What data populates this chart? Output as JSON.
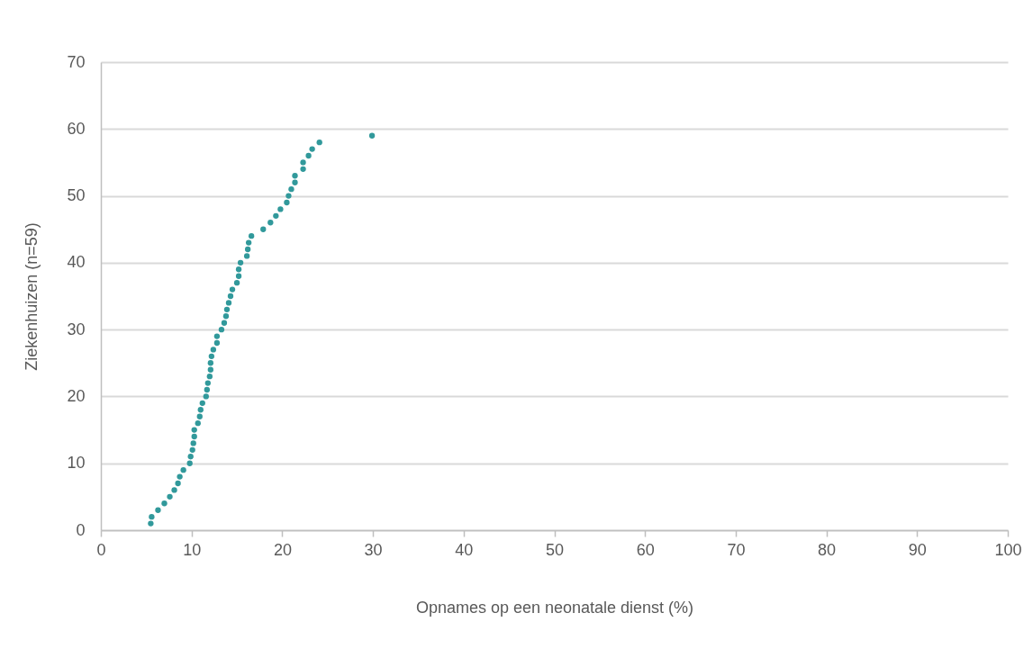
{
  "chart_data": {
    "type": "scatter",
    "xlabel": "Opnames op een neonatale dienst (%)",
    "ylabel": "Ziekenhuizen (n=59)",
    "x": [
      5.5,
      5.6,
      6.3,
      7.0,
      7.6,
      8.1,
      8.5,
      8.7,
      9.1,
      9.8,
      9.9,
      10.1,
      10.2,
      10.3,
      10.3,
      10.7,
      10.9,
      11.0,
      11.2,
      11.6,
      11.7,
      11.8,
      12.0,
      12.1,
      12.1,
      12.2,
      12.4,
      12.8,
      12.8,
      13.3,
      13.6,
      13.8,
      13.9,
      14.1,
      14.3,
      14.5,
      15.0,
      15.2,
      15.2,
      15.4,
      16.1,
      16.2,
      16.3,
      16.6,
      17.9,
      18.7,
      19.3,
      19.8,
      20.5,
      20.7,
      21.0,
      21.4,
      21.4,
      22.3,
      22.3,
      22.9,
      23.3,
      24.1,
      29.9
    ],
    "values": [
      1,
      2,
      3,
      4,
      5,
      6,
      7,
      8,
      9,
      10,
      11,
      12,
      13,
      14,
      15,
      16,
      17,
      18,
      19,
      20,
      21,
      22,
      23,
      24,
      25,
      26,
      27,
      28,
      29,
      30,
      31,
      32,
      33,
      34,
      35,
      36,
      37,
      38,
      39,
      40,
      41,
      42,
      43,
      44,
      45,
      46,
      47,
      48,
      49,
      50,
      51,
      52,
      53,
      54,
      55,
      56,
      57,
      58,
      59
    ],
    "color": "#31999b",
    "marker": "circle",
    "grid": "y",
    "xlim": [
      0,
      100
    ],
    "xticks": [
      0,
      10,
      20,
      30,
      40,
      50,
      60,
      70,
      80,
      90,
      100
    ],
    "ylim": [
      0,
      70
    ],
    "yticks": [
      0,
      10,
      20,
      30,
      40,
      50,
      60,
      70
    ]
  }
}
